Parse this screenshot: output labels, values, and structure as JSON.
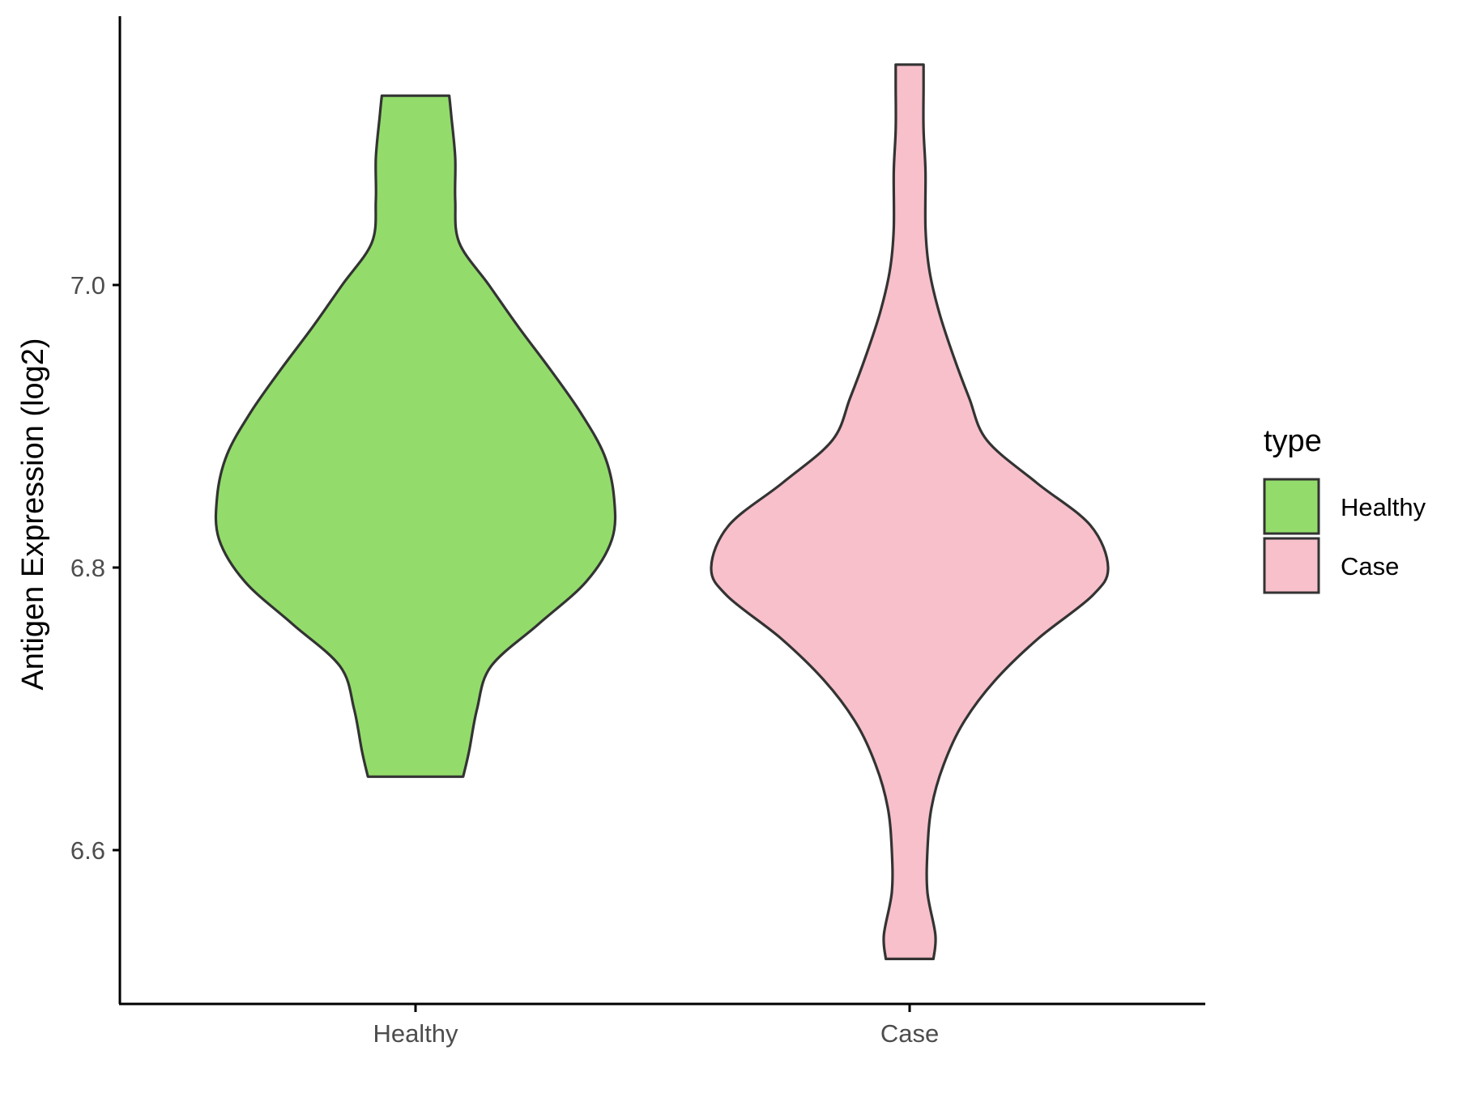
{
  "chart_data": {
    "type": "violin",
    "title": "",
    "xlabel": "",
    "ylabel": "Antigen Expression (log2)",
    "categories": [
      "Healthy",
      "Case"
    ],
    "ylim": [
      6.51,
      7.19
    ],
    "yticks": [
      6.6,
      6.8,
      7.0
    ],
    "ytick_labels": [
      "6.6",
      "6.8",
      "7.0"
    ],
    "grid": false,
    "legend": {
      "title": "type",
      "position": "right",
      "entries": [
        "Healthy",
        "Case"
      ]
    },
    "colors": {
      "Healthy": "#93dc6b",
      "Case": "#f7c0cb",
      "outline": "#333333"
    },
    "series": [
      {
        "name": "Healthy",
        "min": 6.652,
        "max": 7.134,
        "density_profile": [
          [
            6.652,
            0.24
          ],
          [
            6.67,
            0.27
          ],
          [
            6.7,
            0.31
          ],
          [
            6.73,
            0.38
          ],
          [
            6.76,
            0.62
          ],
          [
            6.79,
            0.86
          ],
          [
            6.82,
            0.99
          ],
          [
            6.85,
            1.0
          ],
          [
            6.88,
            0.95
          ],
          [
            6.91,
            0.83
          ],
          [
            6.94,
            0.68
          ],
          [
            6.97,
            0.52
          ],
          [
            7.0,
            0.37
          ],
          [
            7.03,
            0.22
          ],
          [
            7.06,
            0.2
          ],
          [
            7.09,
            0.2
          ],
          [
            7.12,
            0.18
          ],
          [
            7.134,
            0.17
          ]
        ]
      },
      {
        "name": "Case",
        "min": 6.523,
        "max": 7.156,
        "density_profile": [
          [
            6.523,
            0.12
          ],
          [
            6.54,
            0.13
          ],
          [
            6.57,
            0.09
          ],
          [
            6.6,
            0.09
          ],
          [
            6.63,
            0.11
          ],
          [
            6.66,
            0.17
          ],
          [
            6.69,
            0.27
          ],
          [
            6.72,
            0.43
          ],
          [
            6.75,
            0.65
          ],
          [
            6.78,
            0.92
          ],
          [
            6.8,
            1.0
          ],
          [
            6.83,
            0.91
          ],
          [
            6.86,
            0.64
          ],
          [
            6.89,
            0.39
          ],
          [
            6.92,
            0.3
          ],
          [
            6.95,
            0.22
          ],
          [
            6.98,
            0.15
          ],
          [
            7.01,
            0.1
          ],
          [
            7.04,
            0.08
          ],
          [
            7.08,
            0.08
          ],
          [
            7.11,
            0.07
          ],
          [
            7.14,
            0.07
          ],
          [
            7.156,
            0.07
          ]
        ]
      }
    ]
  }
}
